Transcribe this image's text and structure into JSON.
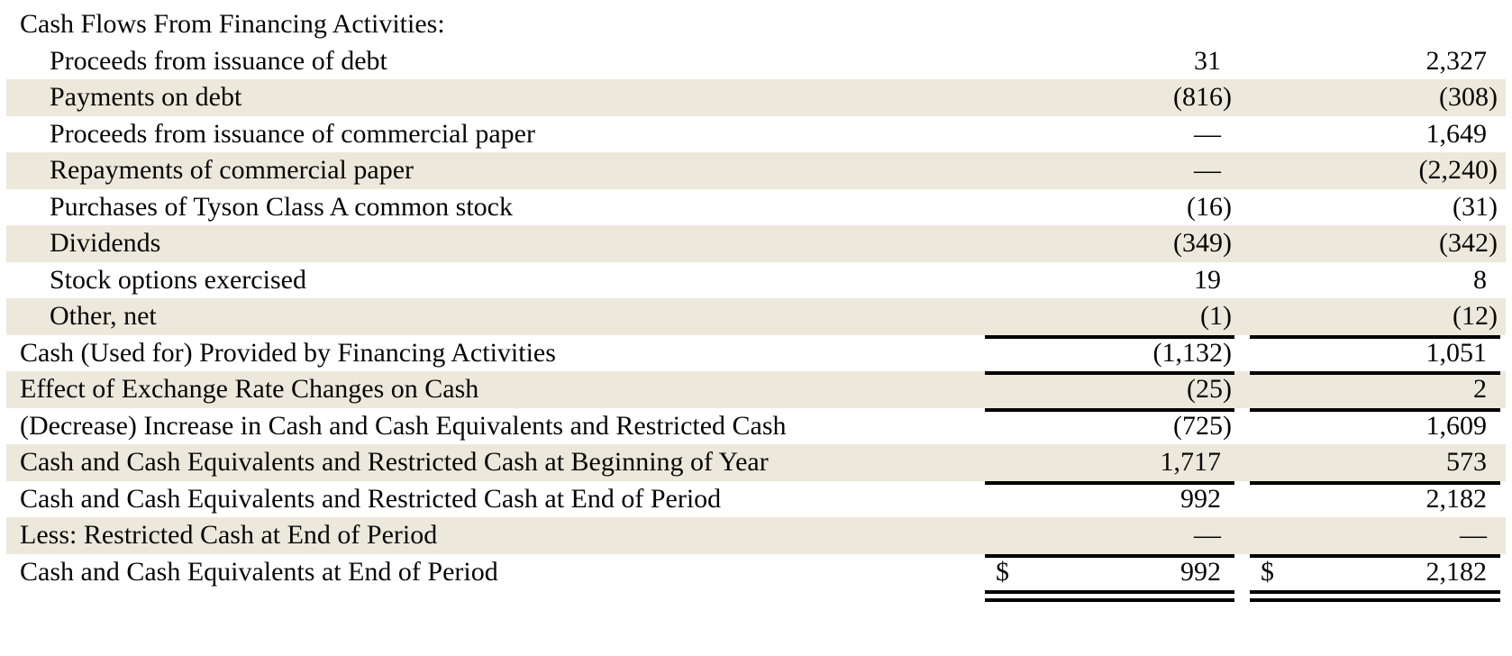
{
  "table": {
    "currency_symbol": "$",
    "colors": {
      "row_shade": "#ece8db",
      "rule_line": "#000000",
      "text": "#070707",
      "background": "#ffffff"
    },
    "rows": [
      {
        "label": "Cash Flows From Financing Activities:",
        "col1": "",
        "col2": ""
      },
      {
        "label": "Proceeds from issuance of debt",
        "col1": "31",
        "col2": "2,327"
      },
      {
        "label": "Payments on debt",
        "col1": "(816)",
        "col2": "(308)"
      },
      {
        "label": "Proceeds from issuance of commercial paper",
        "col1": "—",
        "col2": "1,649"
      },
      {
        "label": "Repayments of commercial paper",
        "col1": "—",
        "col2": "(2,240)"
      },
      {
        "label": "Purchases of Tyson Class A common stock",
        "col1": "(16)",
        "col2": "(31)"
      },
      {
        "label": "Dividends",
        "col1": "(349)",
        "col2": "(342)"
      },
      {
        "label": "Stock options exercised",
        "col1": "19",
        "col2": "8"
      },
      {
        "label": "Other, net",
        "col1": "(1)",
        "col2": "(12)"
      },
      {
        "label": "Cash (Used for) Provided by Financing Activities",
        "col1": "(1,132)",
        "col2": "1,051"
      },
      {
        "label": "Effect of Exchange Rate Changes on Cash",
        "col1": "(25)",
        "col2": "2"
      },
      {
        "label": "(Decrease) Increase in Cash and Cash Equivalents and Restricted Cash",
        "col1": "(725)",
        "col2": "1,609"
      },
      {
        "label": "Cash and Cash Equivalents and Restricted Cash at Beginning of Year",
        "col1": "1,717",
        "col2": "573"
      },
      {
        "label": "Cash and Cash Equivalents and Restricted Cash at End of Period",
        "col1": "992",
        "col2": "2,182"
      },
      {
        "label": "Less: Restricted Cash at End of Period",
        "col1": "—",
        "col2": "—"
      },
      {
        "label": "Cash and Cash Equivalents at End of Period",
        "col1": "992",
        "col2": "2,182"
      }
    ]
  }
}
